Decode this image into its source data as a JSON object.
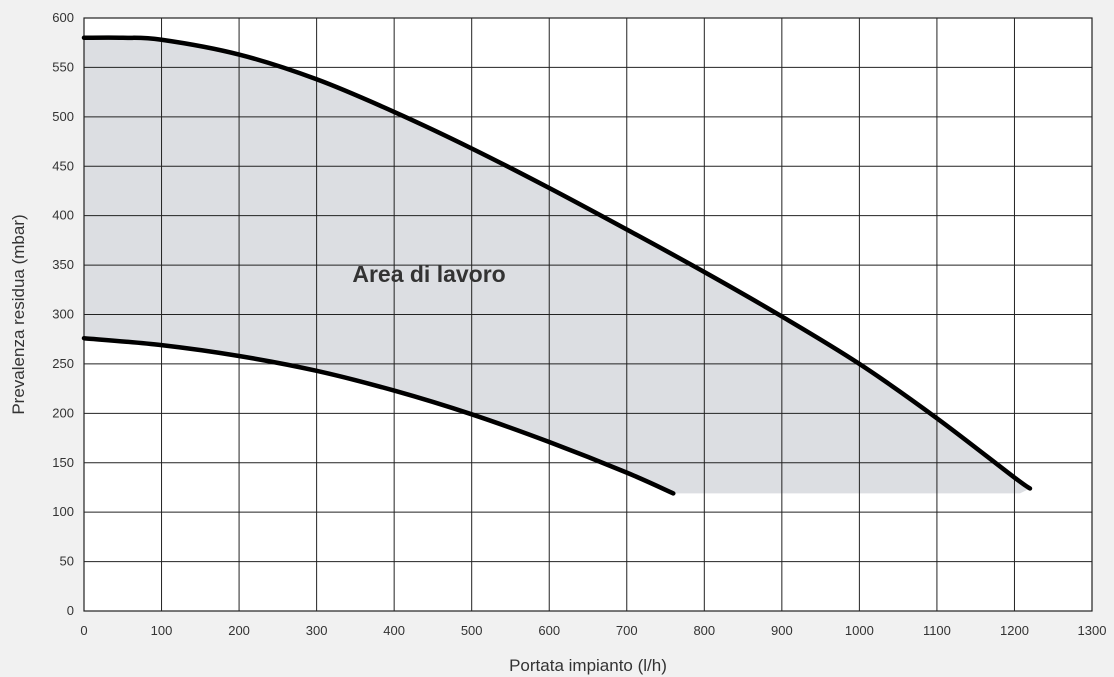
{
  "chart_data": {
    "type": "line",
    "xlabel": "Portata impianto (l/h)",
    "ylabel": "Prevalenza residua (mbar)",
    "xlim": [
      0,
      1300
    ],
    "ylim": [
      0,
      600
    ],
    "x_ticks": [
      0,
      100,
      200,
      300,
      400,
      500,
      600,
      700,
      800,
      900,
      1000,
      1100,
      1200,
      1300
    ],
    "y_ticks": [
      0,
      50,
      100,
      150,
      200,
      250,
      300,
      350,
      400,
      450,
      500,
      550,
      600
    ],
    "grid": true,
    "annotation": "Area di lavoro",
    "area_fill_color": "#dcdee2",
    "line_color": "#000000",
    "series": [
      {
        "x": [
          0,
          50,
          100,
          200,
          300,
          400,
          500,
          600,
          700,
          800,
          900,
          1000,
          1100,
          1200,
          1220
        ],
        "y": [
          580,
          580,
          578,
          563,
          538,
          505,
          468,
          428,
          386,
          343,
          298,
          250,
          195,
          135,
          124
        ]
      },
      {
        "x": [
          0,
          100,
          200,
          300,
          400,
          500,
          600,
          700,
          760
        ],
        "y": [
          276,
          269,
          258,
          243,
          223,
          199,
          171,
          140,
          119
        ]
      }
    ]
  }
}
